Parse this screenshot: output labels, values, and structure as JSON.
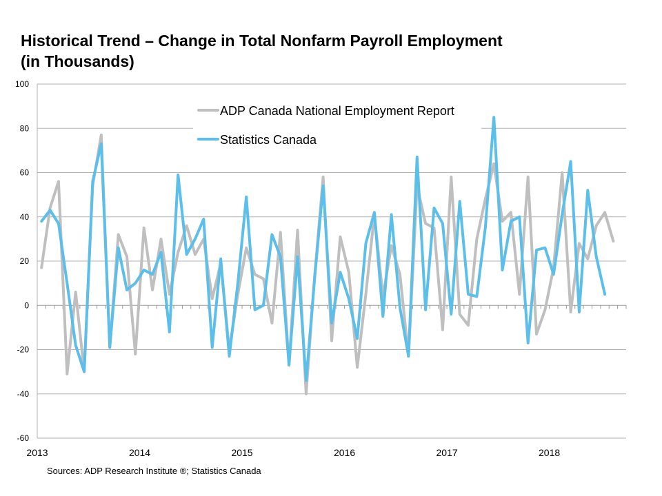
{
  "title_line1": "Historical Trend – Change in Total Nonfarm Payroll Employment",
  "title_line2": "(in Thousands)",
  "source": "Sources: ADP Research Institute ®; Statistics Canada",
  "chart_data": {
    "type": "line",
    "ylim": [
      -60,
      100
    ],
    "y_ticks": [
      100,
      80,
      60,
      40,
      20,
      0,
      -20,
      -40,
      -60
    ],
    "x_ticks": [
      "2013",
      "2014",
      "2015",
      "2016",
      "2017",
      "2018"
    ],
    "x_start_year": 2013,
    "grid": true,
    "legend": "top-center",
    "series": [
      {
        "name": "ADP Canada National Employment Report",
        "color": "#bfbfbf",
        "values": [
          17,
          44,
          56,
          -31,
          6,
          -30,
          54,
          77,
          -19,
          32,
          22,
          -22,
          35,
          7,
          30,
          5,
          24,
          36,
          23,
          30,
          3,
          19,
          -20,
          5,
          26,
          14,
          12,
          -8,
          33,
          -27,
          34,
          -40,
          13,
          58,
          -16,
          31,
          15,
          -28,
          5,
          41,
          4,
          27,
          14,
          -23,
          54,
          37,
          35,
          -11,
          58,
          -4,
          -9,
          30,
          48,
          64,
          38,
          42,
          5,
          58,
          -13,
          -2,
          17,
          60,
          -3,
          28,
          21,
          36,
          42,
          29
        ],
        "line_width": 4
      },
      {
        "name": "Statistics Canada",
        "color": "#5bbfe9",
        "values": [
          38,
          43,
          37,
          10,
          -18,
          -30,
          56,
          73,
          -19,
          26,
          7,
          10,
          16,
          14,
          24,
          -12,
          59,
          23,
          30,
          39,
          -19,
          21,
          -23,
          10,
          49,
          -2,
          0,
          32,
          22,
          -27,
          22,
          -34,
          12,
          54,
          -8,
          15,
          3,
          -15,
          28,
          42,
          -5,
          41,
          -1,
          -23,
          67,
          -2,
          44,
          37,
          -4,
          47,
          5,
          4,
          35,
          85,
          16,
          38,
          40,
          -17,
          25,
          26,
          14,
          41,
          65,
          -3,
          52,
          22,
          5
        ],
        "line_width": 4
      }
    ]
  }
}
